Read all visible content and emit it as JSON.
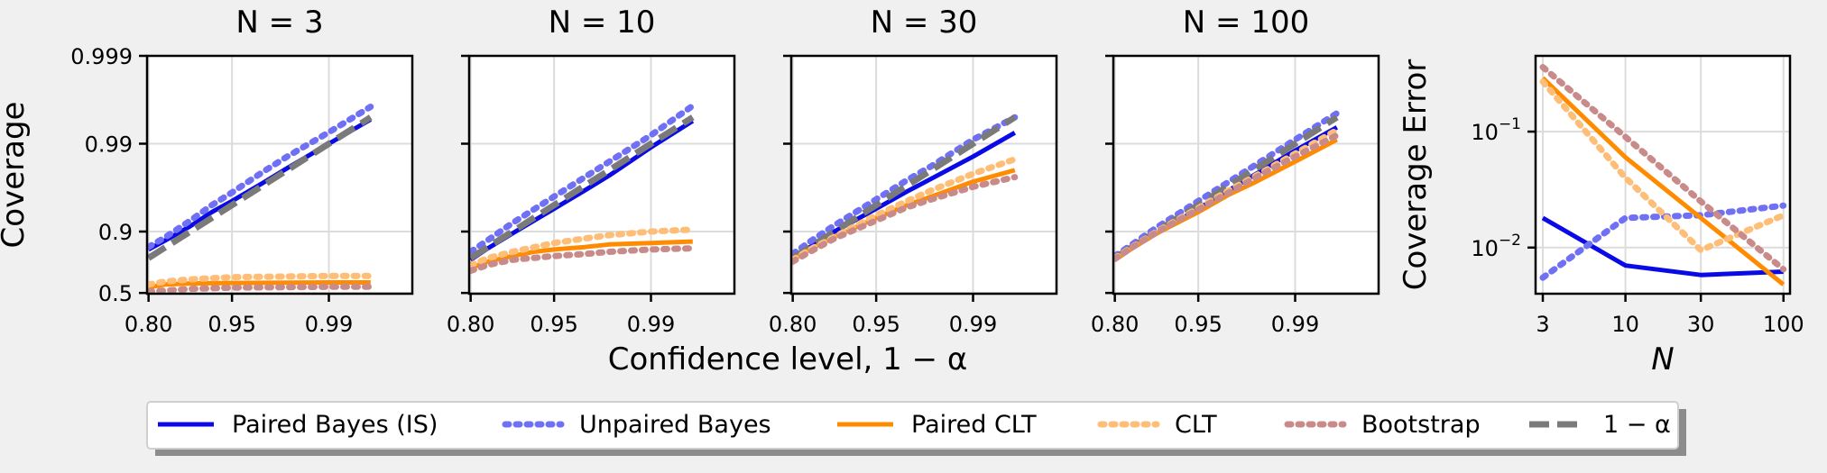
{
  "figure": {
    "shared_xlabel": "Confidence level, 1 − α",
    "legend_placement": "bottom-center"
  },
  "legend": [
    {
      "key": "paired_bayes",
      "label": "Paired Bayes (IS)"
    },
    {
      "key": "unpaired_bayes",
      "label": "Unpaired Bayes"
    },
    {
      "key": "paired_clt",
      "label": "Paired CLT"
    },
    {
      "key": "clt",
      "label": "CLT"
    },
    {
      "key": "bootstrap",
      "label": "Bootstrap"
    },
    {
      "key": "nominal",
      "label": "1 − α"
    }
  ],
  "styles": {
    "paired_bayes": {
      "color": "#0a0ae6",
      "dash": "solid",
      "opacity": 1.0
    },
    "unpaired_bayes": {
      "color": "#7070f5",
      "dash": "dotted",
      "opacity": 1.0
    },
    "paired_clt": {
      "color": "#ff8c00",
      "dash": "solid",
      "opacity": 1.0
    },
    "clt": {
      "color": "#ffbe78",
      "dash": "dotted",
      "opacity": 1.0
    },
    "bootstrap": {
      "color": "#c98a8a",
      "dash": "dotted",
      "opacity": 1.0
    },
    "nominal": {
      "color": "#7a7a7a",
      "dash": "dashed",
      "opacity": 1.0
    }
  },
  "chart_data": [
    {
      "type": "line",
      "title": "N = 3",
      "ylabel": "Coverage",
      "xticks": [
        "0.80",
        "0.95",
        "0.99"
      ],
      "yticks": [
        "0.5",
        "0.9",
        "0.99",
        "0.999"
      ],
      "grid": true,
      "series": [
        {
          "key": "paired_bayes",
          "x": [
            0.8,
            0.85,
            0.9,
            0.93,
            0.95,
            0.97,
            0.98,
            0.99,
            0.995
          ],
          "y": [
            0.84,
            0.875,
            0.913,
            0.94,
            0.955,
            0.972,
            0.981,
            0.99,
            0.9947
          ]
        },
        {
          "key": "unpaired_bayes",
          "x": [
            0.8,
            0.85,
            0.9,
            0.93,
            0.95,
            0.97,
            0.98,
            0.99,
            0.995
          ],
          "y": [
            0.85,
            0.885,
            0.925,
            0.95,
            0.964,
            0.979,
            0.986,
            0.9926,
            0.9962
          ]
        },
        {
          "key": "nominal",
          "x": [
            0.8,
            0.85,
            0.9,
            0.93,
            0.95,
            0.97,
            0.98,
            0.99,
            0.995
          ],
          "y": [
            0.8,
            0.85,
            0.9,
            0.93,
            0.95,
            0.97,
            0.98,
            0.99,
            0.995
          ]
        },
        {
          "key": "paired_clt",
          "x": [
            0.8,
            0.85,
            0.9,
            0.95,
            0.99,
            0.995
          ],
          "y": [
            0.57,
            0.6,
            0.61,
            0.615,
            0.62,
            0.62
          ]
        },
        {
          "key": "clt",
          "x": [
            0.8,
            0.85,
            0.9,
            0.95,
            0.99,
            0.995
          ],
          "y": [
            0.6,
            0.63,
            0.65,
            0.67,
            0.68,
            0.68
          ]
        },
        {
          "key": "bootstrap",
          "x": [
            0.8,
            0.85,
            0.9,
            0.95,
            0.99,
            0.995
          ],
          "y": [
            0.52,
            0.53,
            0.55,
            0.565,
            0.575,
            0.575
          ]
        }
      ]
    },
    {
      "type": "line",
      "title": "N = 10",
      "ylabel": "",
      "xticks": [
        "0.80",
        "0.95",
        "0.99"
      ],
      "yticks": [],
      "grid": true,
      "series": [
        {
          "key": "paired_bayes",
          "x": [
            0.8,
            0.85,
            0.9,
            0.95,
            0.97,
            0.98,
            0.99,
            0.995
          ],
          "y": [
            0.79,
            0.845,
            0.895,
            0.945,
            0.966,
            0.977,
            0.989,
            0.9945
          ]
        },
        {
          "key": "unpaired_bayes",
          "x": [
            0.8,
            0.85,
            0.9,
            0.95,
            0.97,
            0.98,
            0.99,
            0.995
          ],
          "y": [
            0.83,
            0.875,
            0.92,
            0.96,
            0.976,
            0.984,
            0.992,
            0.9963
          ]
        },
        {
          "key": "nominal",
          "x": [
            0.8,
            0.85,
            0.9,
            0.95,
            0.97,
            0.98,
            0.99,
            0.995
          ],
          "y": [
            0.8,
            0.85,
            0.9,
            0.95,
            0.97,
            0.98,
            0.99,
            0.995
          ]
        },
        {
          "key": "paired_clt",
          "x": [
            0.8,
            0.85,
            0.9,
            0.93,
            0.95,
            0.97,
            0.98,
            0.99,
            0.995
          ],
          "y": [
            0.74,
            0.78,
            0.81,
            0.83,
            0.84,
            0.85,
            0.86,
            0.865,
            0.87
          ]
        },
        {
          "key": "clt",
          "x": [
            0.8,
            0.85,
            0.9,
            0.95,
            0.97,
            0.98,
            0.99,
            0.995
          ],
          "y": [
            0.76,
            0.8,
            0.83,
            0.865,
            0.88,
            0.89,
            0.9,
            0.905
          ]
        },
        {
          "key": "bootstrap",
          "x": [
            0.8,
            0.85,
            0.9,
            0.95,
            0.97,
            0.98,
            0.99,
            0.995
          ],
          "y": [
            0.72,
            0.76,
            0.79,
            0.81,
            0.82,
            0.83,
            0.84,
            0.845
          ]
        }
      ]
    },
    {
      "type": "line",
      "title": "N = 30",
      "ylabel": "",
      "xticks": [
        "0.80",
        "0.95",
        "0.99"
      ],
      "yticks": [],
      "grid": true,
      "series": [
        {
          "key": "paired_bayes",
          "x": [
            0.8,
            0.85,
            0.9,
            0.95,
            0.97,
            0.98,
            0.99,
            0.995
          ],
          "y": [
            0.8,
            0.85,
            0.9,
            0.945,
            0.965,
            0.975,
            0.986,
            0.9925
          ]
        },
        {
          "key": "unpaired_bayes",
          "x": [
            0.8,
            0.85,
            0.9,
            0.95,
            0.97,
            0.98,
            0.99,
            0.995
          ],
          "y": [
            0.82,
            0.87,
            0.915,
            0.957,
            0.974,
            0.982,
            0.991,
            0.995
          ]
        },
        {
          "key": "nominal",
          "x": [
            0.8,
            0.85,
            0.9,
            0.95,
            0.97,
            0.98,
            0.99,
            0.995
          ],
          "y": [
            0.8,
            0.85,
            0.9,
            0.95,
            0.97,
            0.98,
            0.99,
            0.995
          ]
        },
        {
          "key": "paired_clt",
          "x": [
            0.8,
            0.85,
            0.9,
            0.95,
            0.97,
            0.98,
            0.99,
            0.995
          ],
          "y": [
            0.79,
            0.84,
            0.885,
            0.93,
            0.95,
            0.96,
            0.973,
            0.98
          ]
        },
        {
          "key": "clt",
          "x": [
            0.8,
            0.85,
            0.9,
            0.95,
            0.97,
            0.98,
            0.99,
            0.995
          ],
          "y": [
            0.79,
            0.84,
            0.885,
            0.935,
            0.955,
            0.966,
            0.978,
            0.985
          ]
        },
        {
          "key": "bootstrap",
          "x": [
            0.8,
            0.85,
            0.9,
            0.95,
            0.97,
            0.98,
            0.99,
            0.995
          ],
          "y": [
            0.78,
            0.83,
            0.88,
            0.925,
            0.947,
            0.957,
            0.969,
            0.976
          ]
        }
      ]
    },
    {
      "type": "line",
      "title": "N = 100",
      "ylabel": "",
      "xticks": [
        "0.80",
        "0.95",
        "0.99"
      ],
      "yticks": [],
      "grid": true,
      "series": [
        {
          "key": "paired_bayes",
          "x": [
            0.8,
            0.85,
            0.9,
            0.95,
            0.97,
            0.98,
            0.99,
            0.995
          ],
          "y": [
            0.79,
            0.845,
            0.895,
            0.945,
            0.966,
            0.977,
            0.988,
            0.9935
          ]
        },
        {
          "key": "unpaired_bayes",
          "x": [
            0.8,
            0.85,
            0.9,
            0.95,
            0.97,
            0.98,
            0.99,
            0.995
          ],
          "y": [
            0.81,
            0.86,
            0.91,
            0.955,
            0.973,
            0.982,
            0.991,
            0.9955
          ]
        },
        {
          "key": "nominal",
          "x": [
            0.8,
            0.85,
            0.9,
            0.95,
            0.97,
            0.98,
            0.99,
            0.995
          ],
          "y": [
            0.8,
            0.85,
            0.9,
            0.95,
            0.97,
            0.98,
            0.99,
            0.995
          ]
        },
        {
          "key": "paired_clt",
          "x": [
            0.8,
            0.85,
            0.9,
            0.95,
            0.97,
            0.98,
            0.99,
            0.995
          ],
          "y": [
            0.79,
            0.845,
            0.895,
            0.94,
            0.962,
            0.972,
            0.984,
            0.991
          ]
        },
        {
          "key": "clt",
          "x": [
            0.8,
            0.85,
            0.9,
            0.95,
            0.97,
            0.98,
            0.99,
            0.995
          ],
          "y": [
            0.8,
            0.85,
            0.9,
            0.946,
            0.966,
            0.976,
            0.987,
            0.993
          ]
        },
        {
          "key": "bootstrap",
          "x": [
            0.8,
            0.85,
            0.9,
            0.95,
            0.97,
            0.98,
            0.99,
            0.995
          ],
          "y": [
            0.795,
            0.848,
            0.898,
            0.944,
            0.964,
            0.975,
            0.986,
            0.992
          ]
        }
      ]
    },
    {
      "type": "line",
      "title": "",
      "xlabel": "N",
      "ylabel": "Coverage Error",
      "xscale": "log",
      "yscale": "log",
      "xticks": [
        3,
        10,
        30,
        100
      ],
      "yticks": [
        "10^-2",
        "10^-1"
      ],
      "ylim": [
        0.004,
        0.45
      ],
      "grid": true,
      "series": [
        {
          "key": "paired_bayes",
          "x": [
            3,
            10,
            30,
            100
          ],
          "y": [
            0.018,
            0.007,
            0.0058,
            0.0062
          ]
        },
        {
          "key": "unpaired_bayes",
          "x": [
            3,
            10,
            30,
            100
          ],
          "y": [
            0.0055,
            0.018,
            0.019,
            0.023
          ]
        },
        {
          "key": "paired_clt",
          "x": [
            3,
            10,
            30,
            100
          ],
          "y": [
            0.29,
            0.06,
            0.018,
            0.0048
          ]
        },
        {
          "key": "clt",
          "x": [
            3,
            10,
            30,
            100
          ],
          "y": [
            0.27,
            0.04,
            0.0095,
            0.019
          ]
        },
        {
          "key": "bootstrap",
          "x": [
            3,
            10,
            30,
            100
          ],
          "y": [
            0.36,
            0.09,
            0.025,
            0.0065
          ]
        }
      ]
    }
  ]
}
